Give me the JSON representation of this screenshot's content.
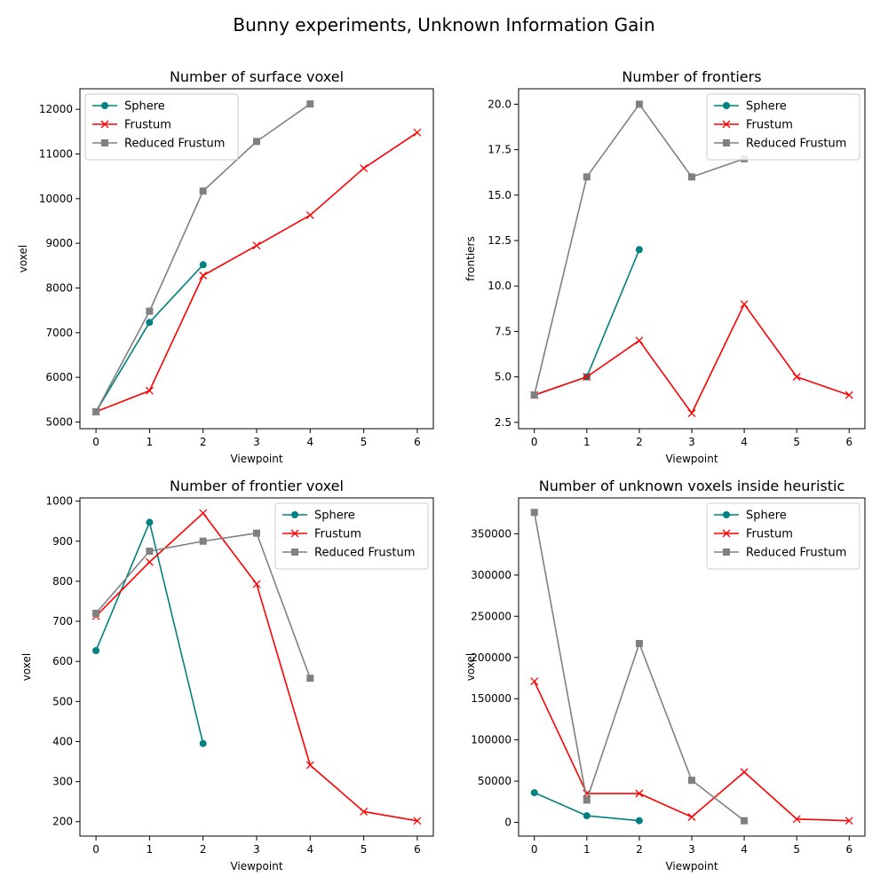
{
  "figure": {
    "title": "Bunny experiments, Unknown Information Gain"
  },
  "colors": {
    "Sphere": "#008080",
    "Frustum": "#ff0000",
    "Reduced Frustum": "#808080"
  },
  "chart_data": [
    {
      "type": "line",
      "title": "Number of surface voxel",
      "xlabel": "Viewpoint",
      "ylabel": "voxel",
      "xlim": [
        -0.3,
        6.3
      ],
      "ylim": [
        4850,
        12460
      ],
      "xticks": [
        0,
        1,
        2,
        3,
        4,
        5,
        6
      ],
      "yticks": [
        5000,
        6000,
        7000,
        8000,
        9000,
        10000,
        11000,
        12000
      ],
      "ytick_labels": [
        "5000",
        "6000",
        "7000",
        "8000",
        "9000",
        "10000",
        "11000",
        "12000"
      ],
      "legend": "upper-left",
      "series": [
        {
          "name": "Sphere",
          "marker": "circle",
          "x": [
            0,
            1,
            2
          ],
          "values": [
            5230,
            7230,
            8520
          ]
        },
        {
          "name": "Frustum",
          "marker": "x",
          "x": [
            0,
            1,
            2,
            3,
            4,
            5,
            6
          ],
          "values": [
            5230,
            5700,
            8280,
            8950,
            9630,
            10680,
            11480
          ]
        },
        {
          "name": "Reduced Frustum",
          "marker": "square",
          "x": [
            0,
            1,
            2,
            3,
            4
          ],
          "values": [
            5230,
            7480,
            10170,
            11280,
            12120
          ]
        }
      ]
    },
    {
      "type": "line",
      "title": "Number of frontiers",
      "xlabel": "Viewpoint",
      "ylabel": "frontiers",
      "xlim": [
        -0.3,
        6.3
      ],
      "ylim": [
        2.15,
        20.85
      ],
      "xticks": [
        0,
        1,
        2,
        3,
        4,
        5,
        6
      ],
      "yticks": [
        2.5,
        5.0,
        7.5,
        10.0,
        12.5,
        15.0,
        17.5,
        20.0
      ],
      "ytick_labels": [
        "2.5",
        "5.0",
        "7.5",
        "10.0",
        "12.5",
        "15.0",
        "17.5",
        "20.0"
      ],
      "legend": "upper-right",
      "series": [
        {
          "name": "Sphere",
          "marker": "circle",
          "x": [
            0,
            1,
            2
          ],
          "values": [
            4,
            5,
            12
          ]
        },
        {
          "name": "Frustum",
          "marker": "x",
          "x": [
            0,
            1,
            2,
            3,
            4,
            5,
            6
          ],
          "values": [
            4,
            5,
            7,
            3,
            9,
            5,
            4
          ]
        },
        {
          "name": "Reduced Frustum",
          "marker": "square",
          "x": [
            0,
            1,
            2,
            3,
            4
          ],
          "values": [
            4,
            16,
            20,
            16,
            17
          ]
        }
      ]
    },
    {
      "type": "line",
      "title": "Number of frontier voxel",
      "xlabel": "Viewpoint",
      "ylabel": "voxel",
      "xlim": [
        -0.3,
        6.3
      ],
      "ylim": [
        164,
        1008
      ],
      "xticks": [
        0,
        1,
        2,
        3,
        4,
        5,
        6
      ],
      "yticks": [
        200,
        300,
        400,
        500,
        600,
        700,
        800,
        900,
        1000
      ],
      "ytick_labels": [
        "200",
        "300",
        "400",
        "500",
        "600",
        "700",
        "800",
        "900",
        "1000"
      ],
      "legend": "upper-right",
      "series": [
        {
          "name": "Sphere",
          "marker": "circle",
          "x": [
            0,
            1,
            2
          ],
          "values": [
            627,
            947,
            395
          ]
        },
        {
          "name": "Frustum",
          "marker": "x",
          "x": [
            0,
            1,
            2,
            3,
            4,
            5,
            6
          ],
          "values": [
            713,
            848,
            970,
            793,
            341,
            225,
            202
          ]
        },
        {
          "name": "Reduced Frustum",
          "marker": "square",
          "x": [
            0,
            1,
            2,
            3,
            4
          ],
          "values": [
            720,
            875,
            900,
            920,
            558
          ]
        }
      ]
    },
    {
      "type": "line",
      "title": "Number of unknown voxels inside heuristic",
      "xlabel": "Viewpoint",
      "ylabel": "voxel",
      "xlim": [
        -0.3,
        6.3
      ],
      "ylim": [
        -16660,
        393540
      ],
      "xticks": [
        0,
        1,
        2,
        3,
        4,
        5,
        6
      ],
      "yticks": [
        0,
        50000,
        100000,
        150000,
        200000,
        250000,
        300000,
        350000
      ],
      "ytick_labels": [
        "0",
        "50000",
        "100000",
        "150000",
        "200000",
        "250000",
        "300000",
        "350000"
      ],
      "legend": "upper-right",
      "series": [
        {
          "name": "Sphere",
          "marker": "circle",
          "x": [
            0,
            1,
            2
          ],
          "values": [
            36000,
            8000,
            2000
          ]
        },
        {
          "name": "Frustum",
          "marker": "x",
          "x": [
            0,
            1,
            2,
            3,
            4,
            5,
            6
          ],
          "values": [
            171000,
            35000,
            35000,
            6500,
            61000,
            4000,
            2000
          ]
        },
        {
          "name": "Reduced Frustum",
          "marker": "square",
          "x": [
            0,
            1,
            2,
            3,
            4
          ],
          "values": [
            376000,
            27000,
            217000,
            51000,
            2000
          ]
        }
      ]
    }
  ]
}
